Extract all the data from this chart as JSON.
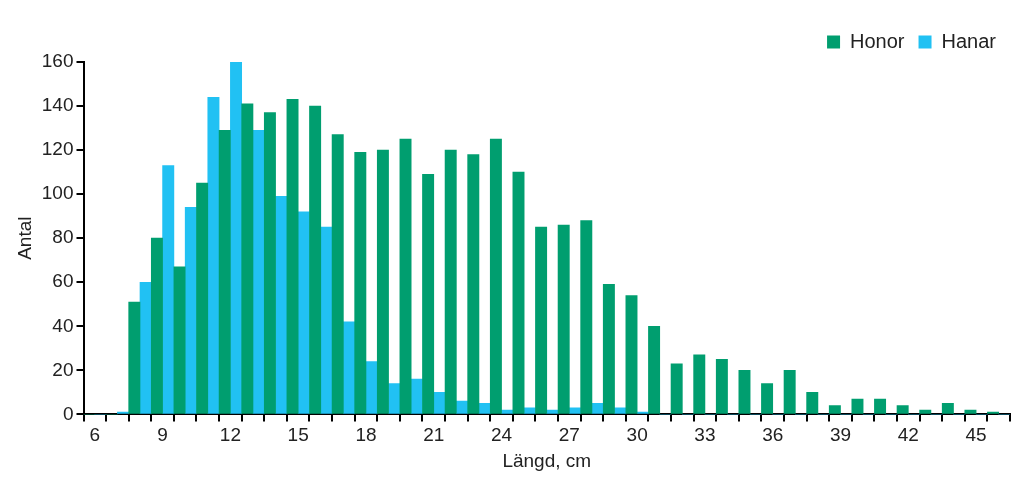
{
  "chart_data": {
    "type": "bar",
    "xlabel": "Längd, cm",
    "ylabel": "Antal",
    "categories": [
      "6",
      null,
      null,
      "9",
      null,
      null,
      "12",
      null,
      null,
      "15",
      null,
      null,
      "18",
      null,
      null,
      "21",
      null,
      null,
      "24",
      null,
      null,
      "27",
      null,
      null,
      "30",
      null,
      null,
      "33",
      null,
      null,
      "36",
      null,
      null,
      "39",
      null,
      null,
      "42",
      null,
      null,
      "45",
      null
    ],
    "series": [
      {
        "name": "Honor",
        "color": "#009e6f",
        "values": [
          0,
          0,
          51,
          80,
          67,
          105,
          129,
          141,
          137,
          143,
          140,
          127,
          119,
          120,
          125,
          109,
          120,
          118,
          125,
          110,
          85,
          86,
          88,
          59,
          54,
          40,
          23,
          27,
          25,
          20,
          14,
          20,
          10,
          4,
          7,
          7,
          4,
          2,
          5,
          2,
          1
        ]
      },
      {
        "name": "Hanar",
        "color": "#21c1f3",
        "values": [
          0,
          1,
          60,
          113,
          94,
          144,
          160,
          129,
          99,
          92,
          85,
          42,
          24,
          14,
          16,
          10,
          6,
          5,
          2,
          3,
          2,
          3,
          5,
          3,
          1,
          0,
          0,
          0,
          0,
          0,
          0,
          0,
          0,
          0,
          0,
          0,
          0,
          0,
          0,
          0,
          0
        ]
      }
    ],
    "ylim": [
      0,
      160
    ],
    "yticks": [
      0,
      20,
      40,
      60,
      80,
      100,
      120,
      140,
      160
    ],
    "grid": false,
    "legend": "top right"
  }
}
